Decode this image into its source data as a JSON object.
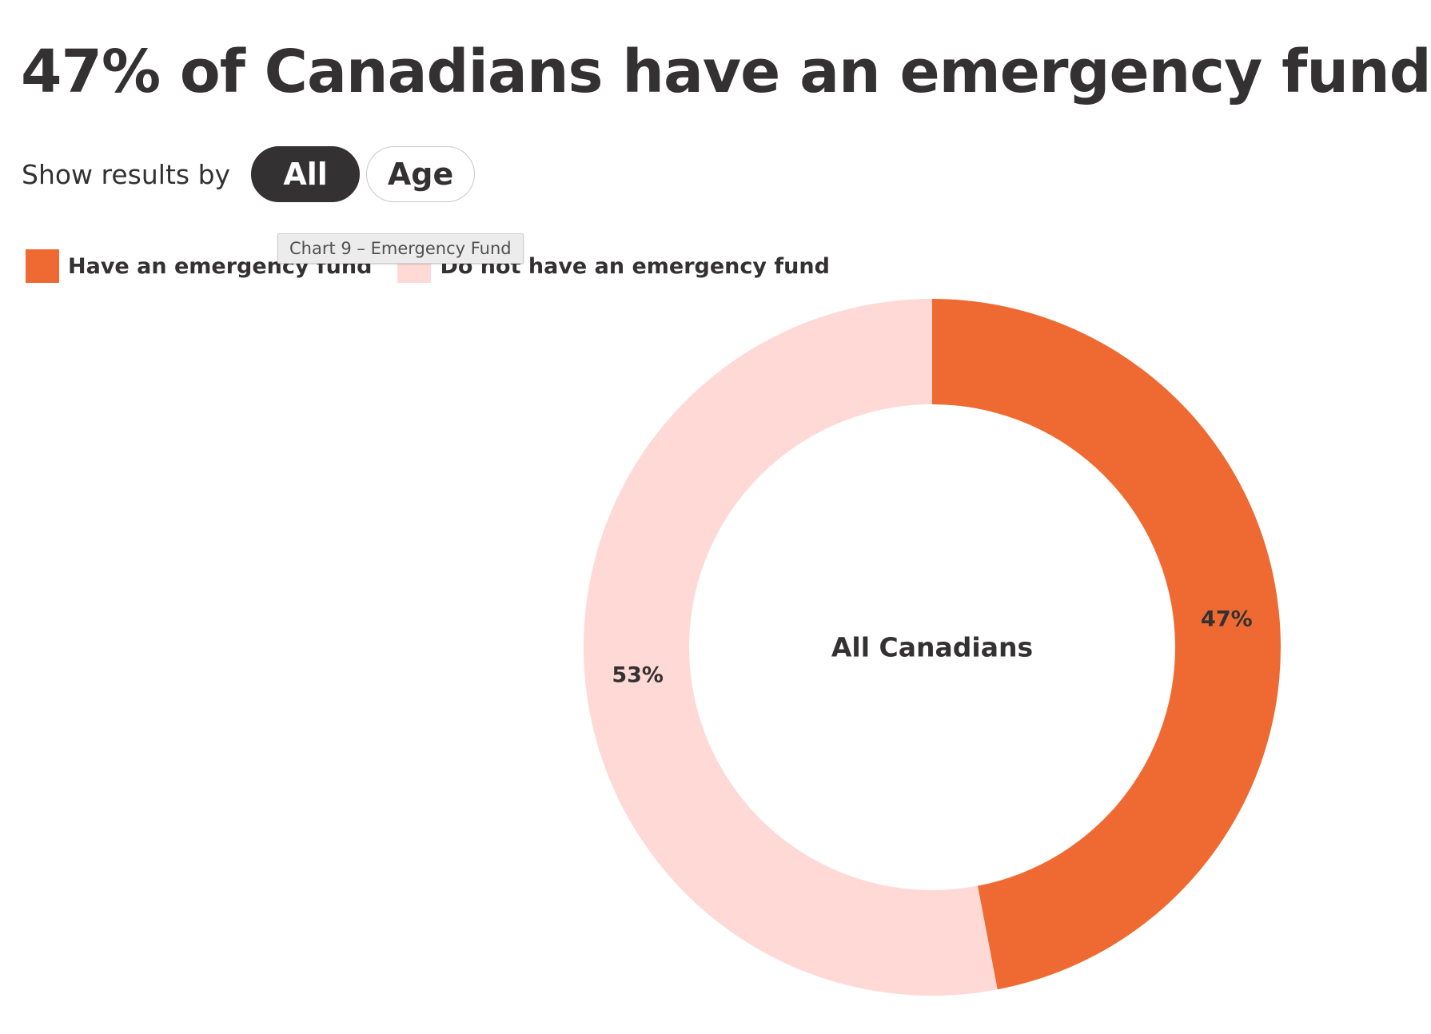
{
  "header": {
    "title": "47% of Canadians have an emergency fund"
  },
  "filter": {
    "label": "Show results by",
    "options": [
      "All",
      "Age"
    ],
    "selected": "All"
  },
  "tooltip": {
    "text": "Chart 9 – Emergency Fund"
  },
  "colors": {
    "have": "#EF6A32",
    "do_not_have": "#FFD9D5",
    "text": "#333132"
  },
  "chart_data": {
    "type": "pie",
    "variant": "donut",
    "center_label": "All Canadians",
    "legend_position": "top-left",
    "categories": [
      "Have an emergency fund",
      "Do not have an emergency fund"
    ],
    "values": [
      47,
      53
    ],
    "labels": [
      "47%",
      "53%"
    ],
    "colors": [
      "#EF6A32",
      "#FFD9D5"
    ],
    "start_angle": "12 o'clock",
    "direction": "clockwise"
  }
}
